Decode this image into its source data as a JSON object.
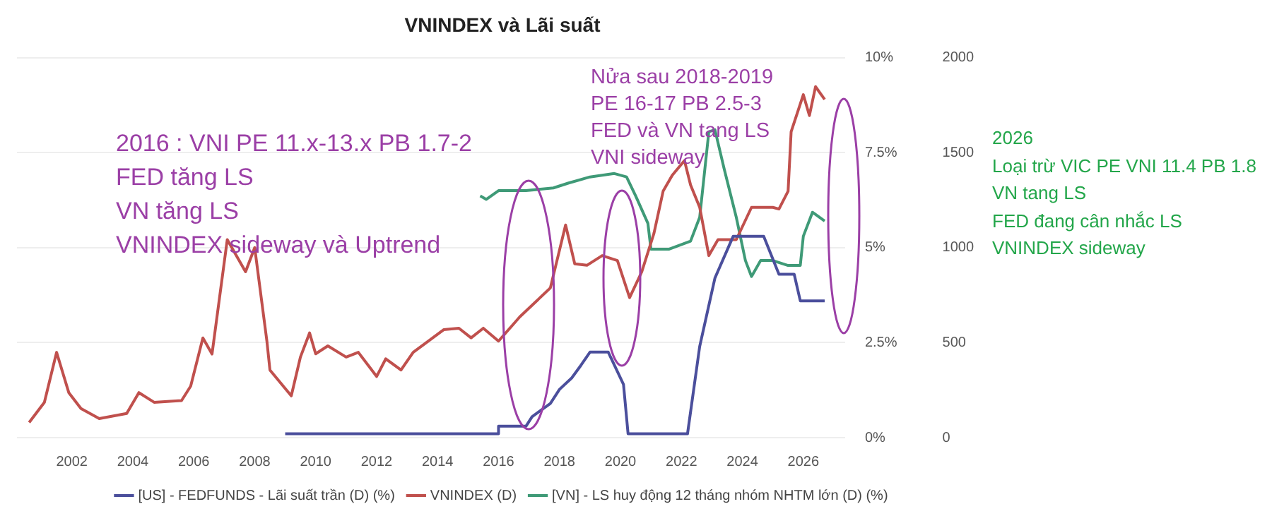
{
  "chart_data": {
    "type": "line",
    "title": "VNINDEX và Lãi suất",
    "xlim": [
      2000.2,
      2027
    ],
    "xticks": [
      2002,
      2004,
      2006,
      2008,
      2010,
      2012,
      2014,
      2016,
      2018,
      2020,
      2022,
      2024,
      2026
    ],
    "ylim": [
      0,
      10
    ],
    "yticks": [
      {
        "value": 0,
        "label": "0%"
      },
      {
        "value": 2.5,
        "label": "2.5%"
      },
      {
        "value": 5,
        "label": "5%"
      },
      {
        "value": 7.5,
        "label": "7.5%"
      },
      {
        "value": 10,
        "label": "10%"
      }
    ],
    "y2lim": [
      0,
      2000
    ],
    "y2ticks": [
      0,
      500,
      1000,
      1500,
      2000
    ],
    "grid": "y",
    "legend": "bottom",
    "marker": "none",
    "series": [
      {
        "name": "[US] - FEDFUNDS - Lãi suất trần (D) (%)",
        "color": "#4b4f9c",
        "x": [
          2009.0,
          2016.0,
          2016.0,
          2016.9,
          2017.1,
          2017.7,
          2018.0,
          2018.4,
          2018.7,
          2019.0,
          2019.6,
          2020.1,
          2020.25,
          2022.2,
          2022.6,
          2023.1,
          2023.7,
          2024.7,
          2025.2,
          2025.7,
          2025.9,
          2026.7
        ],
        "values": [
          0.1,
          0.1,
          0.3,
          0.3,
          0.55,
          0.9,
          1.27,
          1.57,
          1.9,
          2.25,
          2.25,
          1.4,
          0.1,
          0.1,
          2.4,
          4.2,
          5.3,
          5.3,
          4.3,
          4.3,
          3.6,
          3.6
        ]
      },
      {
        "name": "VNINDEX (D)",
        "color": "#c0504d",
        "axis": "y2",
        "x": [
          2000.6,
          2001.1,
          2001.5,
          2001.9,
          2002.3,
          2002.9,
          2003.8,
          2004.2,
          2004.7,
          2005.6,
          2005.9,
          2006.3,
          2006.6,
          2007.1,
          2007.7,
          2008.0,
          2008.4,
          2008.5,
          2009.2,
          2009.5,
          2009.8,
          2010.0,
          2010.4,
          2011.0,
          2011.4,
          2012.0,
          2012.3,
          2012.8,
          2013.2,
          2014.2,
          2014.7,
          2015.1,
          2015.5,
          2016.0,
          2016.7,
          2017.7,
          2018.2,
          2018.5,
          2018.9,
          2019.4,
          2019.9,
          2020.3,
          2020.7,
          2021.1,
          2021.4,
          2021.7,
          2022.1,
          2022.3,
          2022.6,
          2022.9,
          2023.2,
          2023.8,
          2024.3,
          2025.0,
          2025.2,
          2025.5,
          2025.6,
          2026.0,
          2026.2,
          2026.4,
          2026.7
        ],
        "values": [
          80,
          186,
          449,
          237,
          153,
          100,
          127,
          237,
          186,
          195,
          271,
          525,
          440,
          1042,
          873,
          1000,
          508,
          356,
          220,
          424,
          551,
          441,
          483,
          424,
          449,
          322,
          415,
          356,
          449,
          568,
          576,
          525,
          576,
          508,
          636,
          788,
          1119,
          915,
          907,
          958,
          932,
          737,
          873,
          1076,
          1297,
          1381,
          1458,
          1330,
          1212,
          958,
          1042,
          1042,
          1212,
          1212,
          1203,
          1297,
          1610,
          1805,
          1695,
          1847,
          1780
        ]
      },
      {
        "name": "[VN] - LS huy động 12 tháng nhóm NHTM lớn (D) (%)",
        "color": "#3f9a77",
        "x": [
          2015.4,
          2015.6,
          2016.0,
          2016.9,
          2017.8,
          2018.3,
          2019.0,
          2019.8,
          2020.2,
          2020.5,
          2020.9,
          2021.0,
          2021.6,
          2022.3,
          2022.6,
          2022.9,
          2023.1,
          2023.4,
          2023.8,
          2024.1,
          2024.3,
          2024.6,
          2025.0,
          2025.5,
          2025.9,
          2026.0,
          2026.3,
          2026.7
        ],
        "values": [
          6.36,
          6.27,
          6.5,
          6.5,
          6.57,
          6.7,
          6.86,
          6.95,
          6.86,
          6.36,
          5.64,
          4.96,
          4.96,
          5.17,
          5.8,
          8.05,
          8.1,
          7.08,
          5.8,
          4.66,
          4.24,
          4.66,
          4.66,
          4.53,
          4.53,
          5.3,
          5.93,
          5.7
        ]
      }
    ],
    "annotations": [
      "2016 : VNI PE 11.x-13.x PB 1.7-2\nFED tăng LS\nVN tăng LS\nVNINDEX sideway và Uptrend",
      "Nửa sau 2018-2019\nPE 16-17 PB 2.5-3\nFED và VN tang LS\nVNI sideway",
      "2026\nLoại trừ VIC PE VNI 11.4 PB 1.8\nVN tang LS\nFED đang cân nhắc LS\nVNINDEX sideway"
    ]
  }
}
